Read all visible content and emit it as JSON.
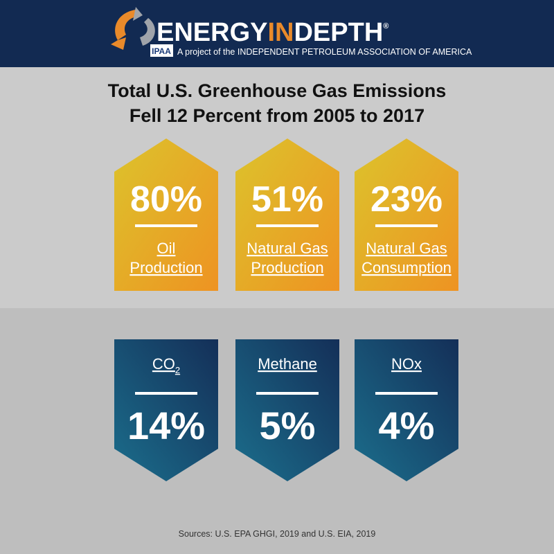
{
  "header": {
    "brand": [
      "ENERGY",
      "IN",
      "DEPTH"
    ],
    "registered": "®",
    "badge": "IPAA",
    "tagline": "A project of the INDEPENDENT PETROLEUM ASSOCIATION OF AMERICA"
  },
  "title": [
    "Total U.S. Greenhouse Gas Emissions",
    "Fell 12 Percent from 2005 to 2017"
  ],
  "increases": [
    {
      "value": "80%",
      "label": [
        "Oil",
        "Production"
      ]
    },
    {
      "value": "51%",
      "label": [
        "Natural Gas",
        "Production"
      ]
    },
    {
      "value": "23%",
      "label": [
        "Natural Gas",
        "Consumption"
      ]
    }
  ],
  "decreases": [
    {
      "label": "CO",
      "subscript": "2",
      "value": "14%"
    },
    {
      "label": "Methane",
      "value": "5%"
    },
    {
      "label": "NOx",
      "value": "4%"
    }
  ],
  "source": "Sources: U.S. EPA GHGI, 2019 and U.S. EIA, 2019"
}
